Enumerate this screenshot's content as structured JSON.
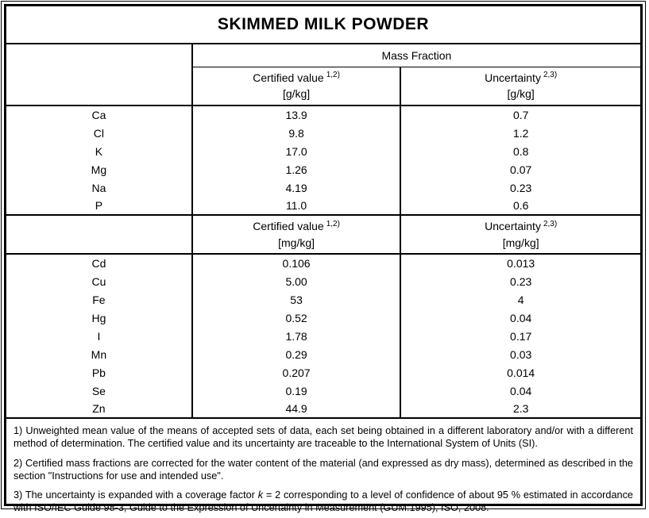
{
  "title": "SKIMMED MILK POWDER",
  "table": {
    "span_header": "Mass Fraction",
    "columns": {
      "certified_label": "Certified value",
      "certified_note": "1,2)",
      "uncertainty_label": "Uncertainty",
      "uncertainty_note": "2,3)"
    },
    "blocks": [
      {
        "unit": "[g/kg]",
        "rows": [
          {
            "element": "Ca",
            "certified": "13.9",
            "uncertainty": "0.7"
          },
          {
            "element": "Cl",
            "certified": "9.8",
            "uncertainty": "1.2"
          },
          {
            "element": "K",
            "certified": "17.0",
            "uncertainty": "0.8"
          },
          {
            "element": "Mg",
            "certified": "1.26",
            "uncertainty": "0.07"
          },
          {
            "element": "Na",
            "certified": "4.19",
            "uncertainty": "0.23"
          },
          {
            "element": "P",
            "certified": "11.0",
            "uncertainty": "0.6"
          }
        ]
      },
      {
        "unit": "[mg/kg]",
        "rows": [
          {
            "element": "Cd",
            "certified": "0.106",
            "uncertainty": "0.013"
          },
          {
            "element": "Cu",
            "certified": "5.00",
            "uncertainty": "0.23"
          },
          {
            "element": "Fe",
            "certified": "53",
            "uncertainty": "4"
          },
          {
            "element": "Hg",
            "certified": "0.52",
            "uncertainty": "0.04"
          },
          {
            "element": "I",
            "certified": "1.78",
            "uncertainty": "0.17"
          },
          {
            "element": "Mn",
            "certified": "0.29",
            "uncertainty": "0.03"
          },
          {
            "element": "Pb",
            "certified": "0.207",
            "uncertainty": "0.014"
          },
          {
            "element": "Se",
            "certified": "0.19",
            "uncertainty": "0.04"
          },
          {
            "element": "Zn",
            "certified": "44.9",
            "uncertainty": "2.3"
          }
        ]
      }
    ]
  },
  "footnotes": {
    "fn1": "1) Unweighted mean value of the means of accepted sets of data, each set being obtained in a different laboratory and/or with a different method of determination. The certified value and its uncertainty are traceable to the International System of Units (SI).",
    "fn2": "2) Certified mass fractions are corrected for the water content of the material (and expressed as dry mass), determined as described in the section \"Instructions for use and intended use\".",
    "fn3_before": "3) The uncertainty is expanded with a coverage factor ",
    "fn3_k": "k",
    "fn3_after": " = 2 corresponding to a level of confidence of about 95 % estimated in accordance with ISO/IEC Guide 98-3, Guide to the Expression of Uncertainty in Measurement (GUM:1995), ISO, 2008."
  }
}
